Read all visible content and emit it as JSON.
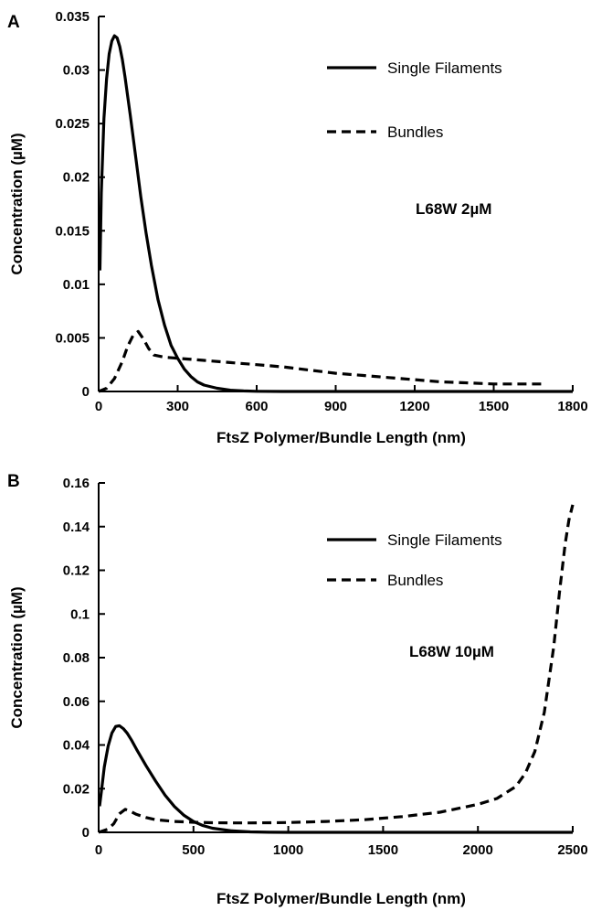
{
  "figure": {
    "panels": [
      {
        "letter": "A"
      },
      {
        "letter": "B"
      }
    ]
  },
  "chart_data": [
    {
      "type": "line",
      "panel": "A",
      "title": "",
      "xlabel": "FtsZ Polymer/Bundle Length (nm)",
      "ylabel": "Concentration (µM)",
      "xlim": [
        0,
        1800
      ],
      "ylim": [
        0,
        0.035
      ],
      "xticks": [
        0,
        300,
        600,
        900,
        1200,
        1500,
        1800
      ],
      "yticks": [
        0,
        0.005,
        0.01,
        0.015,
        0.02,
        0.025,
        0.03,
        0.035
      ],
      "xtick_labels": [
        "0",
        "300",
        "600",
        "900",
        "1200",
        "1500",
        "1800"
      ],
      "ytick_labels": [
        "0",
        "0.005",
        "0.01",
        "0.015",
        "0.02",
        "0.025",
        "0.03",
        "0.035"
      ],
      "grid": false,
      "legend": "top-right",
      "annotation": "L68W 2µM",
      "series": [
        {
          "name": "Single Filaments",
          "style": "solid",
          "x": [
            5,
            10,
            20,
            30,
            40,
            50,
            60,
            70,
            80,
            90,
            100,
            120,
            140,
            160,
            180,
            200,
            225,
            250,
            275,
            300,
            325,
            350,
            375,
            400,
            450,
            500,
            550,
            600,
            700,
            800,
            900,
            1000,
            1200,
            1500,
            1800
          ],
          "y": [
            0.0113,
            0.0185,
            0.0255,
            0.0292,
            0.0315,
            0.0327,
            0.0332,
            0.033,
            0.0322,
            0.031,
            0.0294,
            0.0258,
            0.022,
            0.0182,
            0.0148,
            0.0118,
            0.0086,
            0.0062,
            0.0043,
            0.0031,
            0.0021,
            0.0014,
            0.0009,
            0.0006,
            0.0003,
            0.00012,
            5e-05,
            2e-05,
            0,
            0,
            0,
            0,
            0,
            0,
            0
          ]
        },
        {
          "name": "Bundles",
          "style": "dashed",
          "x": [
            0,
            30,
            60,
            90,
            110,
            130,
            150,
            170,
            190,
            210,
            250,
            300,
            400,
            500,
            600,
            700,
            800,
            900,
            1000,
            1100,
            1200,
            1300,
            1400,
            1500,
            1600,
            1700
          ],
          "y": [
            0,
            0.0003,
            0.0012,
            0.0028,
            0.0042,
            0.0052,
            0.0056,
            0.0049,
            0.004,
            0.0034,
            0.0032,
            0.0031,
            0.0029,
            0.0027,
            0.0025,
            0.0023,
            0.002,
            0.0017,
            0.0015,
            0.0013,
            0.0011,
            0.0009,
            0.0008,
            0.0007,
            0.0007,
            0.0007
          ]
        }
      ]
    },
    {
      "type": "line",
      "panel": "B",
      "title": "",
      "xlabel": "FtsZ Polymer/Bundle Length (nm)",
      "ylabel": "Concentration (µM)",
      "xlim": [
        0,
        2500
      ],
      "ylim": [
        0,
        0.16
      ],
      "xticks": [
        0,
        500,
        1000,
        1500,
        2000,
        2500
      ],
      "yticks": [
        0,
        0.02,
        0.04,
        0.06,
        0.08,
        0.1,
        0.12,
        0.14,
        0.16
      ],
      "xtick_labels": [
        "0",
        "500",
        "1000",
        "1500",
        "2000",
        "2500"
      ],
      "ytick_labels": [
        "0",
        "0.02",
        "0.04",
        "0.06",
        "0.08",
        "0.1",
        "0.12",
        "0.14",
        "0.16"
      ],
      "grid": false,
      "legend": "top-right",
      "annotation": "L68W 10µM",
      "series": [
        {
          "name": "Single Filaments",
          "style": "solid",
          "x": [
            5,
            15,
            30,
            50,
            70,
            90,
            110,
            130,
            150,
            175,
            200,
            250,
            300,
            350,
            400,
            450,
            500,
            550,
            600,
            700,
            800,
            900,
            1000,
            1500,
            2000,
            2500
          ],
          "y": [
            0.012,
            0.019,
            0.03,
            0.0395,
            0.0455,
            0.0485,
            0.0488,
            0.0475,
            0.0455,
            0.042,
            0.038,
            0.0305,
            0.0235,
            0.017,
            0.0118,
            0.0078,
            0.005,
            0.0031,
            0.0019,
            0.0007,
            0.0002,
            5e-05,
            0,
            0,
            0,
            0
          ]
        },
        {
          "name": "Bundles",
          "style": "dashed",
          "x": [
            0,
            50,
            80,
            110,
            140,
            170,
            200,
            250,
            300,
            400,
            500,
            600,
            700,
            800,
            1000,
            1200,
            1400,
            1600,
            1800,
            2000,
            2100,
            2200,
            2250,
            2300,
            2350,
            2400,
            2430,
            2460,
            2480,
            2500
          ],
          "y": [
            0,
            0.0015,
            0.004,
            0.0085,
            0.0105,
            0.0095,
            0.0082,
            0.0068,
            0.0058,
            0.005,
            0.0046,
            0.0044,
            0.0043,
            0.0043,
            0.0045,
            0.005,
            0.0058,
            0.0072,
            0.0092,
            0.0128,
            0.0155,
            0.021,
            0.027,
            0.037,
            0.055,
            0.085,
            0.11,
            0.132,
            0.143,
            0.15
          ]
        }
      ]
    }
  ]
}
